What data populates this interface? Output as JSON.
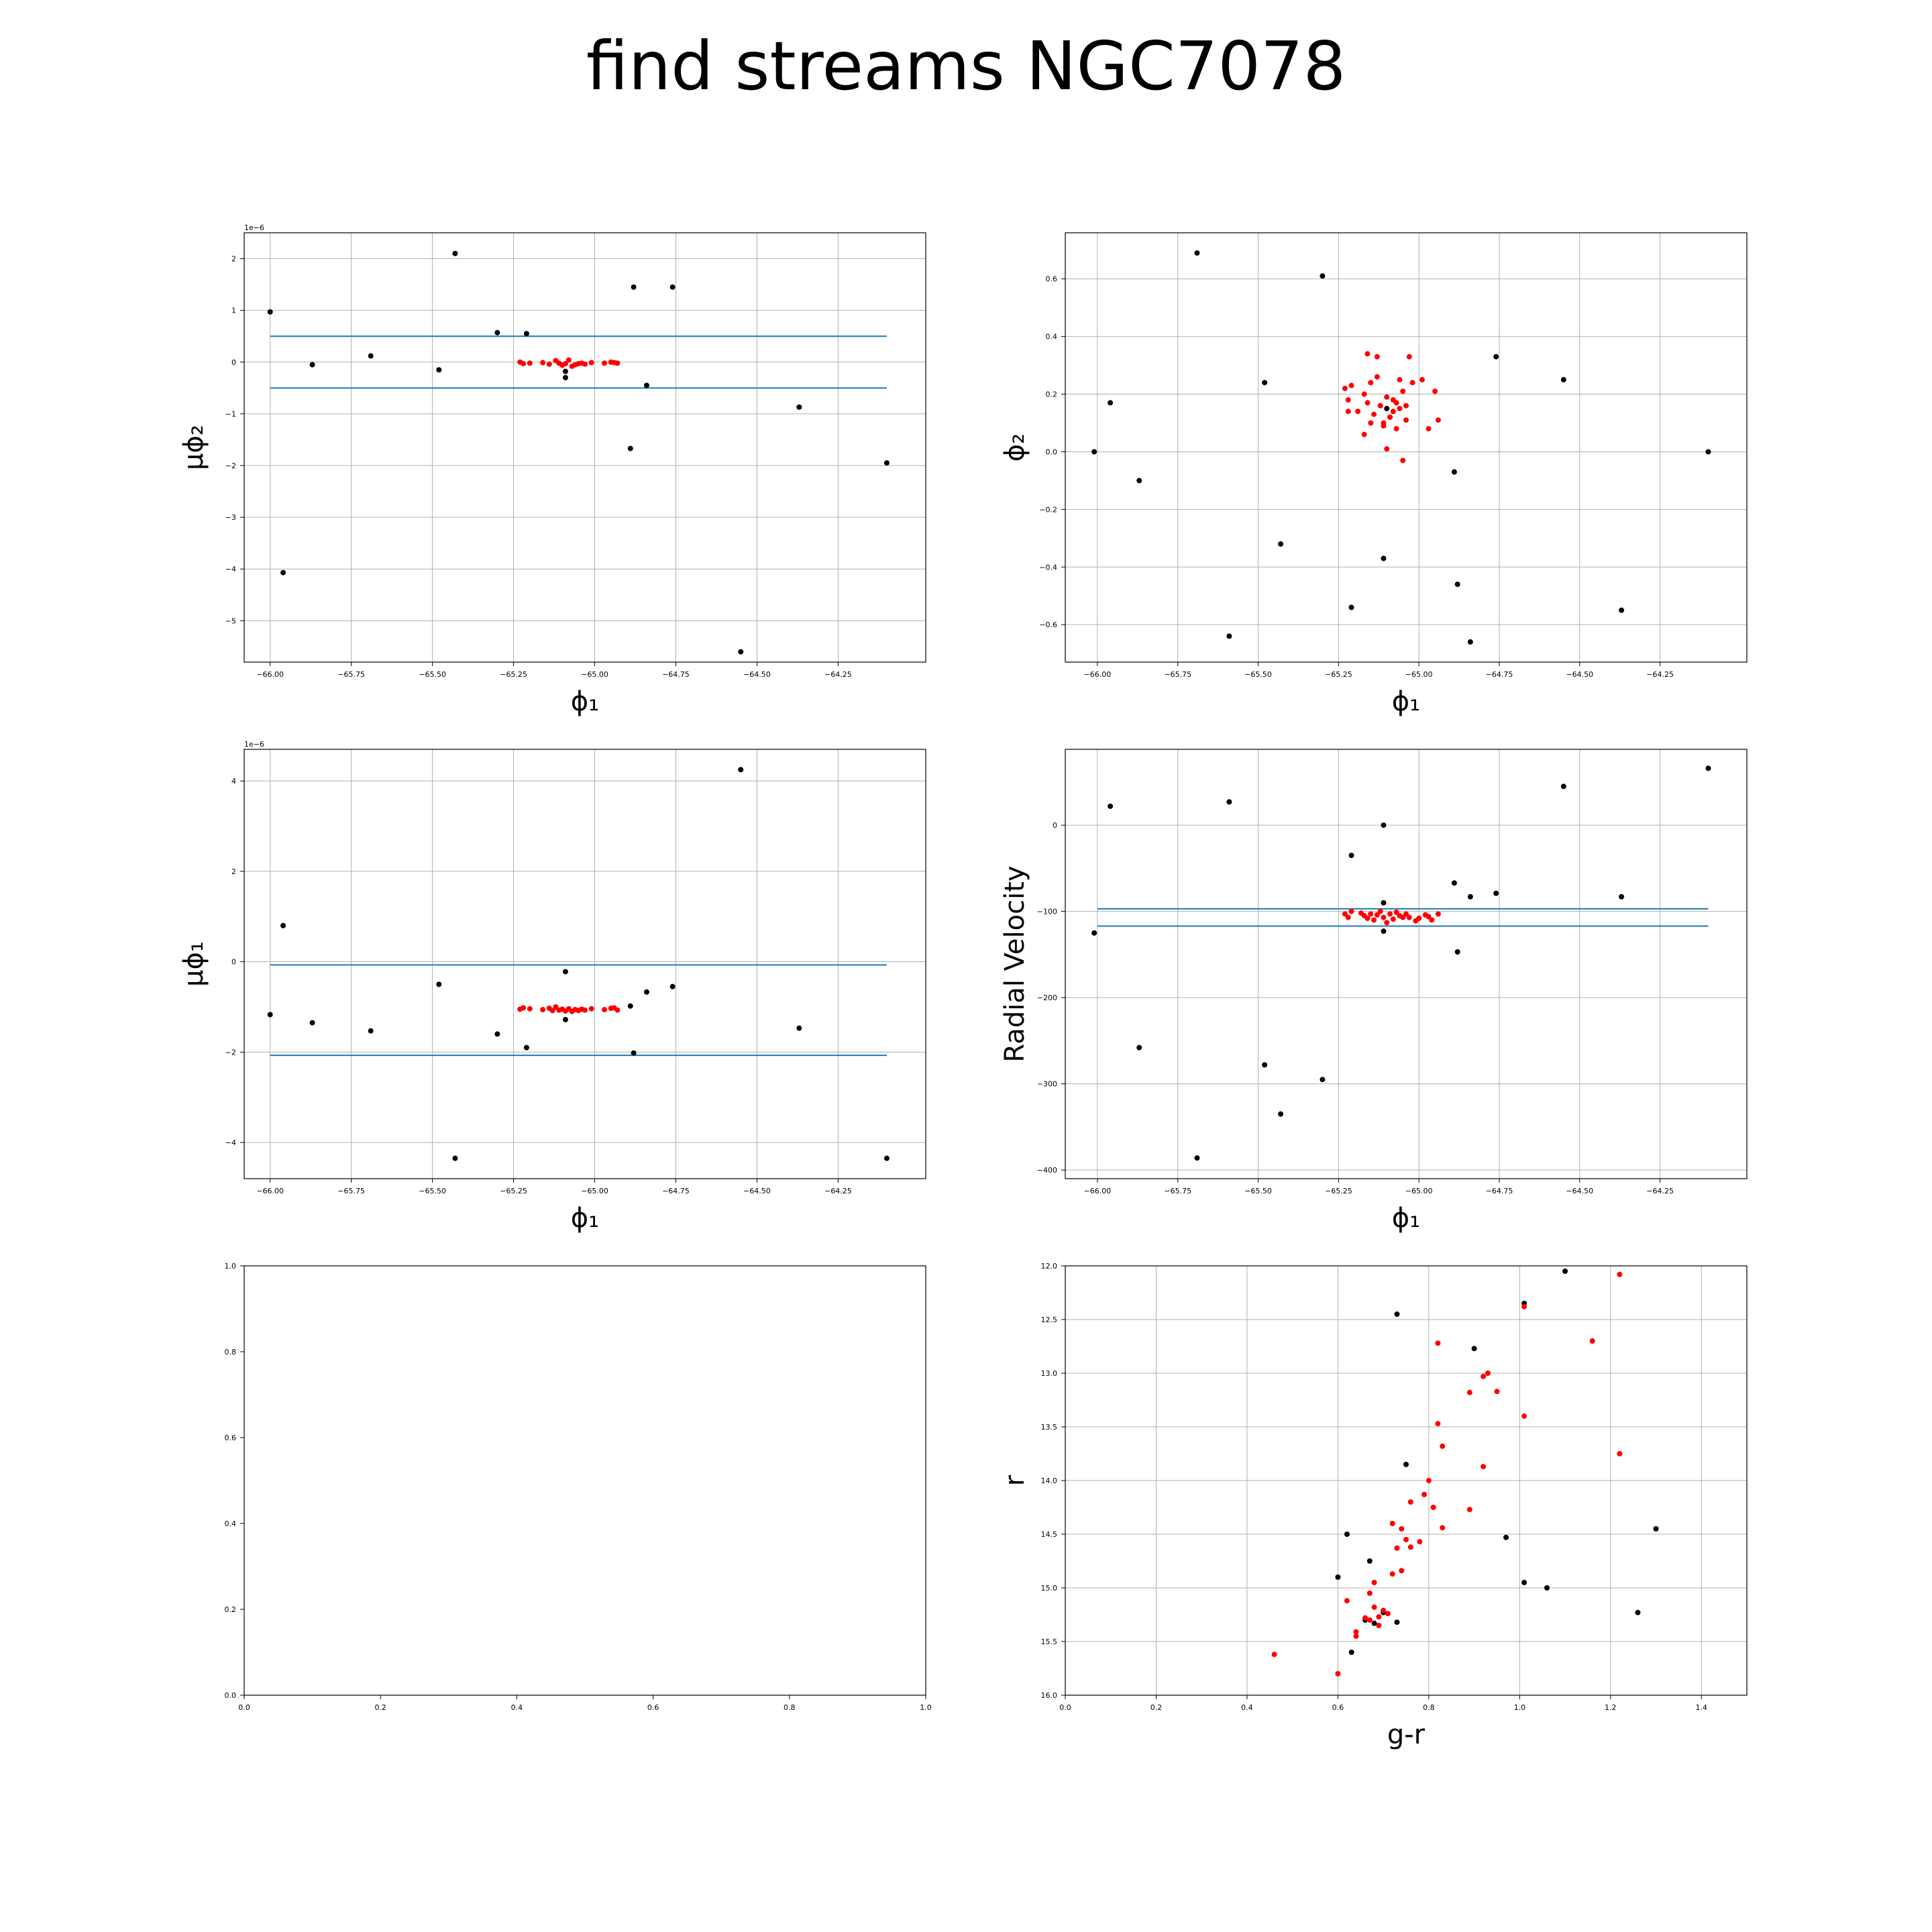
{
  "figure": {
    "title": "find streams NGC7078"
  },
  "colors": {
    "background_points": "#000000",
    "selected_points": "#ff0000",
    "cut_lines": "#1f77b4",
    "grid": "#b0b0b0"
  },
  "chart_data": [
    {
      "type": "scatter",
      "xlabel": "ϕ₁",
      "ylabel": "μϕ₂",
      "y_scale_note": "1e−6",
      "xlim": [
        -66.08,
        -63.98
      ],
      "ylim": [
        -5.8,
        2.5
      ],
      "xticks": [
        -66.0,
        -65.75,
        -65.5,
        -65.25,
        -65.0,
        -64.75,
        -64.5,
        -64.25
      ],
      "xtick_labels": [
        "−66.00",
        "−65.75",
        "−65.50",
        "−65.25",
        "−65.00",
        "−64.75",
        "−64.50",
        "−64.25"
      ],
      "yticks": [
        -5,
        -4,
        -3,
        -2,
        -1,
        0,
        1,
        2
      ],
      "ytick_labels": [
        "−5",
        "−4",
        "−3",
        "−2",
        "−1",
        "0",
        "1",
        "2"
      ],
      "grid": true,
      "hlines": [
        0.5,
        -0.5
      ],
      "hline_xrange": [
        -66.0,
        -64.1
      ],
      "series": [
        {
          "role": "background",
          "color": "#000000",
          "x": [
            -66.0,
            -65.96,
            -65.87,
            -65.69,
            -65.48,
            -65.43,
            -65.3,
            -65.21,
            -65.09,
            -65.09,
            -64.89,
            -64.88,
            -64.84,
            -64.76,
            -64.55,
            -64.37,
            -64.1
          ],
          "y": [
            0.97,
            -4.07,
            -0.05,
            0.12,
            -0.15,
            2.1,
            0.57,
            0.55,
            -0.18,
            -0.3,
            -1.67,
            1.45,
            -0.45,
            1.45,
            -5.6,
            -0.87,
            -1.95
          ]
        },
        {
          "role": "selected",
          "color": "#ff0000",
          "x": [
            -65.23,
            -65.22,
            -65.2,
            -65.16,
            -65.14,
            -65.12,
            -65.11,
            -65.1,
            -65.09,
            -65.08,
            -65.07,
            -65.06,
            -65.05,
            -65.04,
            -65.03,
            -65.01,
            -64.97,
            -64.95,
            -64.94,
            -64.93
          ],
          "y": [
            0.0,
            -0.03,
            -0.02,
            -0.01,
            -0.04,
            0.03,
            -0.02,
            -0.06,
            -0.03,
            0.04,
            -0.08,
            -0.05,
            -0.03,
            -0.02,
            -0.04,
            -0.01,
            -0.02,
            0.0,
            -0.01,
            -0.02
          ]
        }
      ]
    },
    {
      "type": "scatter",
      "xlabel": "ϕ₁",
      "ylabel": "ϕ₂",
      "xlim": [
        -66.1,
        -63.98
      ],
      "ylim": [
        -0.73,
        0.76
      ],
      "xticks": [
        -66.0,
        -65.75,
        -65.5,
        -65.25,
        -65.0,
        -64.75,
        -64.5,
        -64.25
      ],
      "xtick_labels": [
        "−66.00",
        "−65.75",
        "−65.50",
        "−65.25",
        "−65.00",
        "−64.75",
        "−64.50",
        "−64.25"
      ],
      "yticks": [
        -0.6,
        -0.4,
        -0.2,
        0.0,
        0.2,
        0.4,
        0.6
      ],
      "ytick_labels": [
        "−0.6",
        "−0.4",
        "−0.2",
        "0.0",
        "0.2",
        "0.4",
        "0.6"
      ],
      "grid": true,
      "series": [
        {
          "role": "background",
          "color": "#000000",
          "x": [
            -66.01,
            -65.96,
            -65.87,
            -65.69,
            -65.59,
            -65.48,
            -65.43,
            -65.3,
            -65.21,
            -65.11,
            -65.1,
            -64.89,
            -64.88,
            -64.84,
            -64.76,
            -64.55,
            -64.37,
            -64.1
          ],
          "y": [
            0.0,
            0.17,
            -0.1,
            0.69,
            -0.64,
            0.24,
            -0.32,
            0.61,
            -0.54,
            -0.37,
            0.15,
            -0.07,
            -0.46,
            -0.66,
            0.33,
            0.25,
            -0.55,
            0.0
          ]
        },
        {
          "role": "selected",
          "color": "#ff0000",
          "x": [
            -65.23,
            -65.22,
            -65.21,
            -65.19,
            -65.17,
            -65.16,
            -65.15,
            -65.14,
            -65.13,
            -65.12,
            -65.11,
            -65.1,
            -65.09,
            -65.08,
            -65.07,
            -65.06,
            -65.05,
            -65.04,
            -65.03,
            -64.99,
            -64.97,
            -64.95,
            -64.94,
            -65.16,
            -65.13,
            -65.09,
            -65.06,
            -65.02,
            -65.22,
            -65.15,
            -65.1,
            -65.04,
            -65.17,
            -65.12,
            -65.07,
            -65.11,
            -65.08,
            -65.05
          ],
          "y": [
            0.22,
            0.18,
            0.23,
            0.14,
            0.2,
            0.17,
            0.24,
            0.13,
            0.26,
            0.16,
            0.1,
            0.19,
            0.12,
            0.18,
            0.08,
            0.15,
            0.21,
            0.11,
            0.33,
            0.25,
            0.08,
            0.21,
            0.11,
            0.34,
            0.33,
            0.12,
            0.25,
            0.24,
            0.14,
            0.1,
            0.01,
            0.16,
            0.06,
            0.16,
            0.17,
            0.09,
            0.14,
            -0.03
          ]
        }
      ]
    },
    {
      "type": "scatter",
      "xlabel": "ϕ₁",
      "ylabel": "μϕ₁",
      "y_scale_note": "1e−6",
      "xlim": [
        -66.08,
        -63.98
      ],
      "ylim": [
        -4.8,
        4.7
      ],
      "xticks": [
        -66.0,
        -65.75,
        -65.5,
        -65.25,
        -65.0,
        -64.75,
        -64.5,
        -64.25
      ],
      "xtick_labels": [
        "−66.00",
        "−65.75",
        "−65.50",
        "−65.25",
        "−65.00",
        "−64.75",
        "−64.50",
        "−64.25"
      ],
      "yticks": [
        -4,
        -2,
        0,
        2,
        4
      ],
      "ytick_labels": [
        "−4",
        "−2",
        "0",
        "2",
        "4"
      ],
      "grid": true,
      "hlines": [
        -0.07,
        -2.07
      ],
      "hline_xrange": [
        -66.0,
        -64.1
      ],
      "series": [
        {
          "role": "background",
          "color": "#000000",
          "x": [
            -66.0,
            -65.96,
            -65.87,
            -65.69,
            -65.48,
            -65.43,
            -65.3,
            -65.21,
            -65.09,
            -65.09,
            -64.89,
            -64.88,
            -64.84,
            -64.76,
            -64.55,
            -64.37,
            -64.1
          ],
          "y": [
            -1.17,
            0.8,
            -1.35,
            -1.53,
            -0.5,
            -4.35,
            -1.6,
            -1.9,
            -0.22,
            -1.28,
            -0.98,
            -2.02,
            -0.67,
            -0.55,
            4.25,
            -1.47,
            -4.35
          ]
        },
        {
          "role": "selected",
          "color": "#ff0000",
          "x": [
            -65.23,
            -65.22,
            -65.2,
            -65.16,
            -65.14,
            -65.13,
            -65.12,
            -65.11,
            -65.1,
            -65.09,
            -65.08,
            -65.07,
            -65.06,
            -65.05,
            -65.04,
            -65.03,
            -65.01,
            -64.97,
            -64.95,
            -64.94,
            -64.93
          ],
          "y": [
            -1.05,
            -1.02,
            -1.04,
            -1.06,
            -1.03,
            -1.08,
            -1.0,
            -1.07,
            -1.05,
            -1.09,
            -1.04,
            -1.1,
            -1.06,
            -1.08,
            -1.05,
            -1.07,
            -1.04,
            -1.06,
            -1.03,
            -1.02,
            -1.07
          ]
        }
      ]
    },
    {
      "type": "scatter",
      "xlabel": "ϕ₁",
      "ylabel": "Radial Velocity",
      "xlim": [
        -66.1,
        -63.98
      ],
      "ylim": [
        -410,
        88
      ],
      "xticks": [
        -66.0,
        -65.75,
        -65.5,
        -65.25,
        -65.0,
        -64.75,
        -64.5,
        -64.25
      ],
      "xtick_labels": [
        "−66.00",
        "−65.75",
        "−65.50",
        "−65.25",
        "−65.00",
        "−64.75",
        "−64.50",
        "−64.25"
      ],
      "yticks": [
        -400,
        -300,
        -200,
        -100,
        0
      ],
      "ytick_labels": [
        "−400",
        "−300",
        "−200",
        "−100",
        "0"
      ],
      "grid": true,
      "hlines": [
        -97,
        -117
      ],
      "hline_xrange": [
        -66.0,
        -64.1
      ],
      "series": [
        {
          "role": "background",
          "color": "#000000",
          "x": [
            -66.01,
            -65.96,
            -65.87,
            -65.69,
            -65.59,
            -65.48,
            -65.43,
            -65.3,
            -65.21,
            -65.11,
            -65.11,
            -65.11,
            -64.89,
            -64.88,
            -64.84,
            -64.76,
            -64.55,
            -64.37,
            -64.1
          ],
          "y": [
            -125,
            22,
            -258,
            -386,
            27,
            -278,
            -335,
            -295,
            -35,
            0,
            -123,
            -90,
            -67,
            -147,
            -83,
            -79,
            45,
            -83,
            66
          ]
        },
        {
          "role": "selected",
          "color": "#ff0000",
          "x": [
            -65.23,
            -65.22,
            -65.21,
            -65.18,
            -65.17,
            -65.16,
            -65.15,
            -65.14,
            -65.13,
            -65.12,
            -65.11,
            -65.1,
            -65.09,
            -65.08,
            -65.07,
            -65.06,
            -65.05,
            -65.04,
            -65.03,
            -65.01,
            -65.0,
            -64.98,
            -64.97,
            -64.96,
            -64.94
          ],
          "y": [
            -103,
            -107,
            -100,
            -102,
            -105,
            -108,
            -103,
            -110,
            -104,
            -100,
            -107,
            -113,
            -103,
            -109,
            -101,
            -105,
            -107,
            -103,
            -107,
            -111,
            -108,
            -104,
            -106,
            -110,
            -103
          ]
        }
      ]
    },
    {
      "type": "scatter",
      "empty": true,
      "xlim": [
        0.0,
        1.0
      ],
      "ylim": [
        0.0,
        1.0
      ],
      "xticks": [
        0.0,
        0.2,
        0.4,
        0.6,
        0.8,
        1.0
      ],
      "xtick_labels": [
        "0.0",
        "0.2",
        "0.4",
        "0.6",
        "0.8",
        "1.0"
      ],
      "yticks": [
        0.0,
        0.2,
        0.4,
        0.6,
        0.8,
        1.0
      ],
      "ytick_labels": [
        "0.0",
        "0.2",
        "0.4",
        "0.6",
        "0.8",
        "1.0"
      ],
      "grid": false,
      "series": []
    },
    {
      "type": "scatter",
      "xlabel": "g-r",
      "ylabel": "r",
      "y_inverted": true,
      "xlim": [
        0.0,
        1.5
      ],
      "ylim": [
        16.0,
        12.0
      ],
      "xticks": [
        0.0,
        0.2,
        0.4,
        0.6,
        0.8,
        1.0,
        1.2,
        1.4
      ],
      "xtick_labels": [
        "0.0",
        "0.2",
        "0.4",
        "0.6",
        "0.8",
        "1.0",
        "1.2",
        "1.4"
      ],
      "yticks": [
        12.0,
        12.5,
        13.0,
        13.5,
        14.0,
        14.5,
        15.0,
        15.5,
        16.0
      ],
      "ytick_labels": [
        "12.0",
        "12.5",
        "13.0",
        "13.5",
        "14.0",
        "14.5",
        "15.0",
        "15.5",
        "16.0"
      ],
      "grid": true,
      "series": [
        {
          "role": "background",
          "color": "#000000",
          "x": [
            0.73,
            1.1,
            1.01,
            0.9,
            0.75,
            0.62,
            0.67,
            0.6,
            0.63,
            0.66,
            0.68,
            0.7,
            0.73,
            0.97,
            1.01,
            1.06,
            1.3,
            1.26
          ],
          "y": [
            12.45,
            12.05,
            12.35,
            12.77,
            13.85,
            14.5,
            14.75,
            14.9,
            15.6,
            15.3,
            15.33,
            15.23,
            15.32,
            14.53,
            14.95,
            15.0,
            14.45,
            15.23
          ]
        },
        {
          "role": "selected",
          "color": "#ff0000",
          "x": [
            0.46,
            0.6,
            0.62,
            0.64,
            0.66,
            0.67,
            0.68,
            0.69,
            0.7,
            0.71,
            0.72,
            0.73,
            0.74,
            0.75,
            0.76,
            0.78,
            0.79,
            0.8,
            0.82,
            0.83,
            0.82,
            0.89,
            0.92,
            0.93,
            0.95,
            1.01,
            1.22,
            1.16,
            1.22,
            1.01,
            0.92,
            0.89,
            0.68,
            0.72,
            0.74,
            0.76,
            0.67,
            0.69,
            0.64,
            0.83,
            0.81
          ],
          "y": [
            15.62,
            15.8,
            15.12,
            15.41,
            15.28,
            15.05,
            15.18,
            15.27,
            15.21,
            15.24,
            14.87,
            14.63,
            14.84,
            14.55,
            14.2,
            14.57,
            14.13,
            14.0,
            13.47,
            13.68,
            12.72,
            13.18,
            13.03,
            13.0,
            13.17,
            13.4,
            12.08,
            12.7,
            13.75,
            12.38,
            13.87,
            14.27,
            14.95,
            14.4,
            14.45,
            14.62,
            15.3,
            15.35,
            15.45,
            14.44,
            14.25
          ]
        }
      ]
    }
  ]
}
